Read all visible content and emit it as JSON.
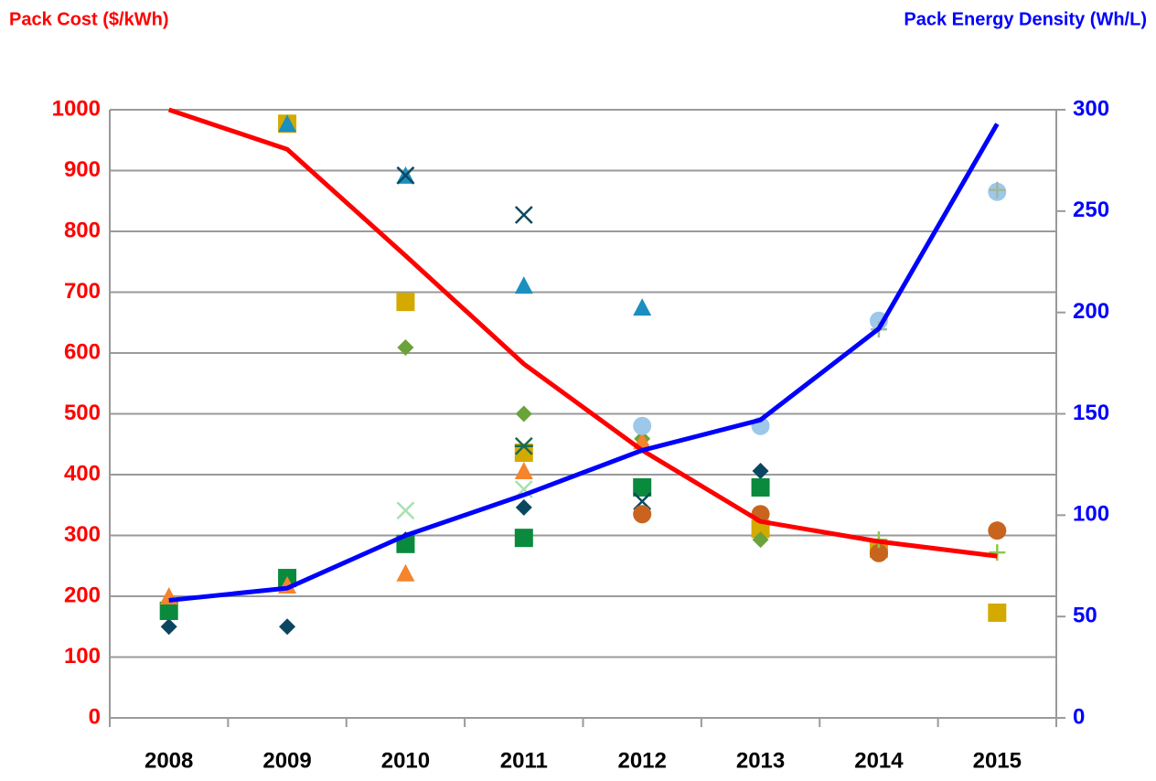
{
  "chart_data": {
    "type": "line",
    "y_label": "Pack Cost ($/kWh)",
    "y2_label": "Pack Energy Density (Wh/L)",
    "categories": [
      "2008",
      "2009",
      "2010",
      "2011",
      "2012",
      "2013",
      "2014",
      "2015"
    ],
    "ylim": [
      0,
      1000
    ],
    "yticks": [
      0,
      100,
      200,
      300,
      400,
      500,
      600,
      700,
      800,
      900,
      1000
    ],
    "y2lim": [
      0,
      300
    ],
    "y2ticks": [
      0,
      50,
      100,
      150,
      200,
      250,
      300
    ],
    "grid": true,
    "y_color": "#ff0000",
    "y2_color": "#0000ff",
    "series": [
      {
        "type": "line",
        "color": "#ff0000",
        "values": [
          1000,
          935,
          760,
          582,
          440,
          323,
          290,
          266
        ]
      },
      {
        "type": "line",
        "color": "#0000ff",
        "axis": "y2",
        "values": [
          58,
          64,
          90,
          110,
          132,
          147,
          192,
          293
        ]
      },
      {
        "type": "scatter",
        "marker": "diamond",
        "color": "#0b4660",
        "values": [
          150,
          150,
          293,
          346,
          null,
          406,
          null,
          null
        ]
      },
      {
        "type": "scatter",
        "marker": "square",
        "color": "#d4aa00",
        "values": [
          null,
          977,
          684,
          436,
          null,
          311,
          278,
          173
        ]
      },
      {
        "type": "scatter",
        "marker": "triangle",
        "color": "#1a8fc0",
        "values": [
          null,
          977,
          892,
          711,
          675,
          null,
          null,
          null
        ]
      },
      {
        "type": "scatter",
        "marker": "diamond",
        "color": "#6aa33a",
        "values": [
          null,
          null,
          609,
          500,
          459,
          293,
          null,
          null
        ]
      },
      {
        "type": "scatter",
        "marker": "square",
        "color": "#0a8a3c",
        "values": [
          176,
          230,
          286,
          296,
          379,
          379,
          null,
          null
        ]
      },
      {
        "type": "scatter",
        "marker": "triangle",
        "color": "#f5842a",
        "values": [
          200,
          218,
          238,
          406,
          455,
          null,
          null,
          null
        ]
      },
      {
        "type": "scatter",
        "marker": "x",
        "color": "#0d4a5e",
        "values": [
          null,
          null,
          892,
          827,
          356,
          null,
          null,
          null
        ]
      },
      {
        "type": "scatter",
        "marker": "asterisk",
        "color": "#1a6a50",
        "values": [
          null,
          null,
          null,
          447,
          null,
          null,
          null,
          null
        ]
      },
      {
        "type": "scatter",
        "marker": "x",
        "color": "#a8e0b0",
        "values": [
          null,
          null,
          341,
          376,
          null,
          null,
          null,
          null
        ]
      },
      {
        "type": "scatter",
        "marker": "circle",
        "color": "#9dc8ea",
        "values": [
          null,
          null,
          null,
          null,
          480,
          480,
          653,
          865
        ]
      },
      {
        "type": "scatter",
        "marker": "circle",
        "color": "#c8641e",
        "values": [
          null,
          null,
          null,
          null,
          335,
          335,
          271,
          308
        ]
      },
      {
        "type": "scatter",
        "marker": "plus",
        "color": "#8cc84a",
        "values": [
          null,
          null,
          null,
          null,
          null,
          null,
          293,
          272
        ]
      },
      {
        "type": "scatter",
        "marker": "plus",
        "color": "#a0b8a0",
        "values": [
          null,
          null,
          null,
          null,
          null,
          null,
          639,
          868
        ]
      }
    ]
  }
}
